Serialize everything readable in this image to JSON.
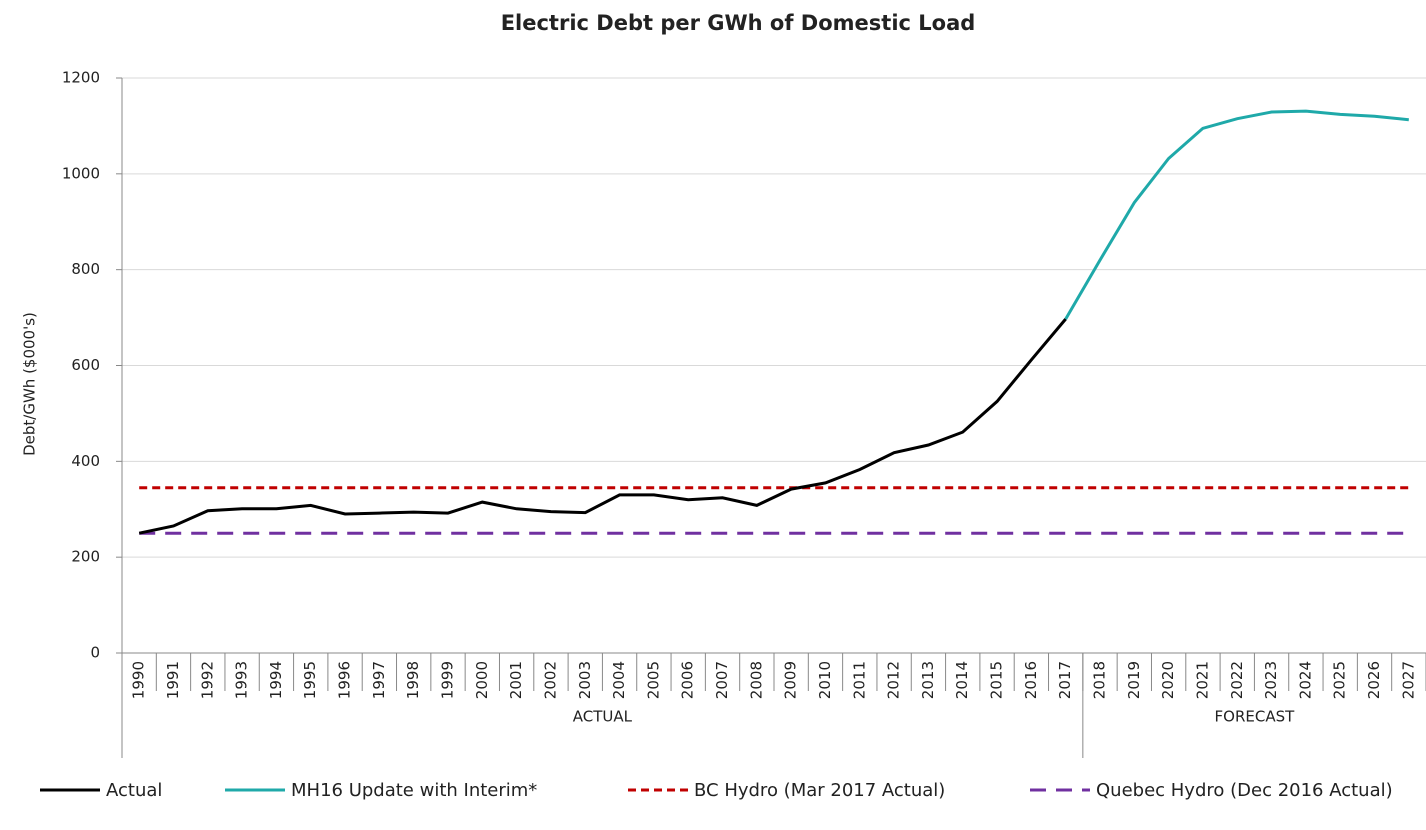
{
  "chart_data": {
    "type": "line",
    "title": "Electric Debt per GWh of Domestic Load",
    "y_label": "Debt/GWh ($000's)",
    "categories": [
      "1990",
      "1991",
      "1992",
      "1993",
      "1994",
      "1995",
      "1996",
      "1997",
      "1998",
      "1999",
      "2000",
      "2001",
      "2002",
      "2003",
      "2004",
      "2005",
      "2006",
      "2007",
      "2008",
      "2009",
      "2010",
      "2011",
      "2012",
      "2013",
      "2014",
      "2015",
      "2016",
      "2017",
      "2018",
      "2019",
      "2020",
      "2021",
      "2022",
      "2023",
      "2024",
      "2025",
      "2026",
      "2027"
    ],
    "groups": [
      {
        "label": "ACTUAL",
        "span": 28
      },
      {
        "label": "FORECAST",
        "span": 10
      }
    ],
    "ylim": [
      0,
      1200
    ],
    "yticks": [
      0,
      200,
      400,
      600,
      800,
      1000,
      1200
    ],
    "grid": true,
    "legend": "bottom",
    "series": [
      {
        "name": "Actual",
        "color": "#000000",
        "dash": "solid",
        "values": [
          250,
          265,
          297,
          301,
          301,
          308,
          290,
          292,
          294,
          292,
          315,
          301,
          295,
          293,
          330,
          330,
          320,
          324,
          308,
          342,
          355,
          383,
          418,
          434,
          461,
          525,
          612,
          697,
          null,
          null,
          null,
          null,
          null,
          null,
          null,
          null,
          null,
          null
        ]
      },
      {
        "name": "MH16 Update with Interim*",
        "color": "#1fa9a9",
        "dash": "solid",
        "values": [
          null,
          null,
          null,
          null,
          null,
          null,
          null,
          null,
          null,
          null,
          null,
          null,
          null,
          null,
          null,
          null,
          null,
          null,
          null,
          null,
          null,
          null,
          null,
          null,
          null,
          null,
          null,
          697,
          820,
          940,
          1032,
          1095,
          1115,
          1129,
          1131,
          1124,
          1120,
          1113
        ]
      },
      {
        "name": "BC Hydro (Mar 2017 Actual)",
        "color": "#c00000",
        "dash": "short",
        "values": [
          345,
          345,
          345,
          345,
          345,
          345,
          345,
          345,
          345,
          345,
          345,
          345,
          345,
          345,
          345,
          345,
          345,
          345,
          345,
          345,
          345,
          345,
          345,
          345,
          345,
          345,
          345,
          345,
          345,
          345,
          345,
          345,
          345,
          345,
          345,
          345,
          345,
          345
        ]
      },
      {
        "name": "Quebec Hydro (Dec 2016 Actual)",
        "color": "#7030a0",
        "dash": "long",
        "values": [
          250,
          250,
          250,
          250,
          250,
          250,
          250,
          250,
          250,
          250,
          250,
          250,
          250,
          250,
          250,
          250,
          250,
          250,
          250,
          250,
          250,
          250,
          250,
          250,
          250,
          250,
          250,
          250,
          250,
          250,
          250,
          250,
          250,
          250,
          250,
          250,
          250,
          250
        ]
      }
    ]
  }
}
